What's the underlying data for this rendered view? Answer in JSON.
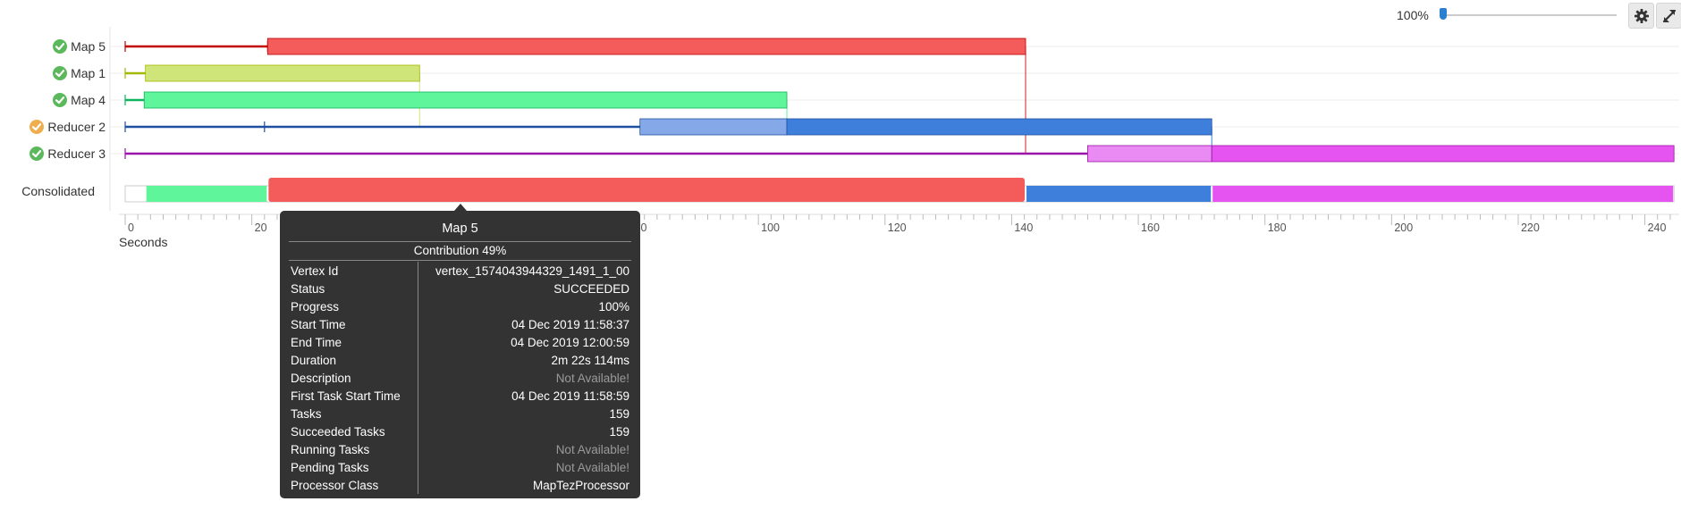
{
  "toolbar": {
    "zoom_value": "100%",
    "zoom_fraction": 0.0,
    "settings_icon": "gear-icon",
    "fullscreen_icon": "expand-arrows-icon"
  },
  "rows": [
    {
      "label": "Map 5",
      "status": "succeeded",
      "color": "#f45b5b"
    },
    {
      "label": "Map 1",
      "status": "succeeded",
      "color": "#cfe57a"
    },
    {
      "label": "Map 4",
      "status": "succeeded",
      "color": "#5ff59b"
    },
    {
      "label": "Reducer 2",
      "status": "running",
      "color": "#3f7fdc"
    },
    {
      "label": "Reducer 3",
      "status": "succeeded",
      "color": "#e553f0"
    }
  ],
  "status_colors": {
    "succeeded": "#5cb85c",
    "running": "#f0ad4e"
  },
  "consolidated_label": "Consolidated",
  "axis": {
    "title": "Seconds",
    "ticks": [
      "0",
      "20",
      "40",
      "60",
      "80",
      "100",
      "120",
      "140",
      "160",
      "180",
      "200",
      "220",
      "240"
    ]
  },
  "chart_data": {
    "type": "gantt",
    "xlabel": "Seconds",
    "xlim": [
      0,
      245
    ],
    "series": [
      {
        "name": "Map 5",
        "events": [
          0,
          22.5
        ],
        "start": 22.5,
        "end": 142.2,
        "color": "#f45b5b",
        "line_color": "#c00000"
      },
      {
        "name": "Map 1",
        "events": [
          0
        ],
        "start": 3.2,
        "end": 46.5,
        "color": "#cfe57a",
        "line_color": "#a4b800"
      },
      {
        "name": "Map 4",
        "events": [
          0
        ],
        "start": 3.0,
        "end": 104.5,
        "color": "#5ff59b",
        "line_color": "#12b35d"
      },
      {
        "name": "Reducer 2",
        "events": [
          0,
          22
        ],
        "start": 81.3,
        "end": 171.6,
        "light_end": 104.5,
        "color": "#3f7fdc",
        "light_color": "#85a9e8",
        "line_color": "#1f4fa0"
      },
      {
        "name": "Reducer 3",
        "events": [
          0
        ],
        "start": 152.0,
        "end": 244.6,
        "light_end": 171.6,
        "color": "#e553f0",
        "light_color": "#e98bf2",
        "line_color": "#9b13a8"
      }
    ],
    "consolidated": [
      {
        "start": 0,
        "end": 3.2,
        "color": "#ffffff"
      },
      {
        "start": 3.2,
        "end": 22.5,
        "color": "#5ff59b"
      },
      {
        "start": 22.5,
        "end": 142.2,
        "color": "#f45b5b"
      },
      {
        "start": 142.2,
        "end": 171.6,
        "color": "#3f7fdc"
      },
      {
        "start": 171.6,
        "end": 244.6,
        "color": "#e553f0"
      }
    ],
    "guides": [
      {
        "x": 46.5,
        "from_row": 1,
        "to_row": 3,
        "color": "#cfe57a"
      },
      {
        "x": 104.5,
        "from_row": 2,
        "to_row": 3,
        "color": "#5ff59b"
      },
      {
        "x": 142.2,
        "from_row": 0,
        "to_row": 4,
        "color": "#d32020"
      },
      {
        "x": 171.6,
        "from_row": 3,
        "to_row": 4,
        "color": "#3f7fdc"
      }
    ]
  },
  "tooltip": {
    "title": "Map 5",
    "contribution": "Contribution 49%",
    "rows": [
      {
        "key": "Vertex Id",
        "value": "vertex_1574043944329_1491_1_00",
        "na": false
      },
      {
        "key": "Status",
        "value": "SUCCEEDED",
        "na": false
      },
      {
        "key": "Progress",
        "value": "100%",
        "na": false
      },
      {
        "key": "Start Time",
        "value": "04 Dec 2019 11:58:37",
        "na": false
      },
      {
        "key": "End Time",
        "value": "04 Dec 2019 12:00:59",
        "na": false
      },
      {
        "key": "Duration",
        "value": "2m 22s 114ms",
        "na": false
      },
      {
        "key": "Description",
        "value": "Not Available!",
        "na": true
      },
      {
        "key": "First Task Start Time",
        "value": "04 Dec 2019 11:58:59",
        "na": false
      },
      {
        "key": "Tasks",
        "value": "159",
        "na": false
      },
      {
        "key": "Succeeded Tasks",
        "value": "159",
        "na": false
      },
      {
        "key": "Running Tasks",
        "value": "Not Available!",
        "na": true
      },
      {
        "key": "Pending Tasks",
        "value": "Not Available!",
        "na": true
      },
      {
        "key": "Processor Class",
        "value": "MapTezProcessor",
        "na": false
      }
    ]
  }
}
